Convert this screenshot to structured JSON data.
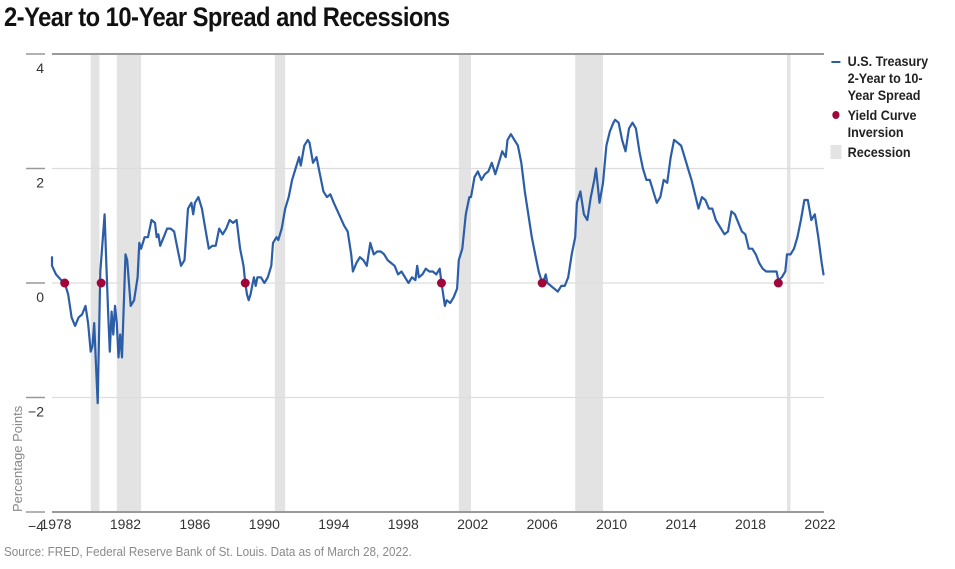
{
  "title": "2-Year to 10-Year Spread and Recessions",
  "source": "Source: FRED, Federal Reserve Bank of St. Louis. Data as of March 28, 2022.",
  "legend": {
    "series": "U.S. Treasury 2-Year to 10-Year Spread",
    "inversion": "Yield Curve Inversion",
    "recession": "Recession"
  },
  "colors": {
    "series": "#2b5ea7",
    "inversion": "#a0063a",
    "recession": "#e3e3e3",
    "grid": "#dddddd",
    "axis": "#999999"
  },
  "chart_data": {
    "type": "line",
    "title": "2-Year to 10-Year Spread and Recessions",
    "xlabel": "",
    "ylabel": "Percentage Points",
    "xlim": [
      1978,
      2022
    ],
    "ylim": [
      -4,
      4
    ],
    "x_ticks": [
      "1978",
      "1982",
      "1986",
      "1990",
      "1994",
      "1998",
      "2002",
      "2006",
      "2010",
      "2014",
      "2018",
      "2022"
    ],
    "y_ticks": [
      "4",
      "2",
      "0",
      "−2",
      "−4"
    ],
    "y_tick_values": [
      4,
      2,
      0,
      -2,
      -4
    ],
    "grid": true,
    "legend_position": "right",
    "recessions": [
      [
        1980.0,
        1980.5
      ],
      [
        1981.5,
        1982.9
      ],
      [
        1990.6,
        1991.2
      ],
      [
        2001.2,
        2001.9
      ],
      [
        2007.9,
        2009.5
      ],
      [
        2020.1,
        2020.3
      ]
    ],
    "inversions": [
      1978.5,
      1980.6,
      1988.9,
      2000.2,
      2006.0,
      2019.6
    ],
    "series": [
      {
        "name": "U.S. Treasury 2-Year to 10-Year Spread",
        "points": [
          [
            1976.5,
            0.45
          ],
          [
            1977.0,
            0.45
          ],
          [
            1977.3,
            0.4
          ],
          [
            1977.6,
            0.3
          ],
          [
            1978.0,
            0.15
          ],
          [
            1978.3,
            0.05
          ],
          [
            1978.5,
            0.0
          ],
          [
            1978.7,
            -0.2
          ],
          [
            1978.9,
            -0.6
          ],
          [
            1979.1,
            -0.75
          ],
          [
            1979.3,
            -0.6
          ],
          [
            1979.5,
            -0.55
          ],
          [
            1979.7,
            -0.4
          ],
          [
            1979.85,
            -0.7
          ],
          [
            1980.0,
            -1.2
          ],
          [
            1980.1,
            -1.1
          ],
          [
            1980.2,
            -0.7
          ],
          [
            1980.3,
            -1.4
          ],
          [
            1980.4,
            -2.1
          ],
          [
            1980.55,
            0.2
          ],
          [
            1980.7,
            0.8
          ],
          [
            1980.8,
            1.2
          ],
          [
            1980.9,
            0.3
          ],
          [
            1981.0,
            -0.5
          ],
          [
            1981.1,
            -1.2
          ],
          [
            1981.2,
            -0.5
          ],
          [
            1981.3,
            -0.9
          ],
          [
            1981.4,
            -0.4
          ],
          [
            1981.5,
            -0.7
          ],
          [
            1981.6,
            -1.3
          ],
          [
            1981.7,
            -0.9
          ],
          [
            1981.8,
            -1.3
          ],
          [
            1982.0,
            0.5
          ],
          [
            1982.1,
            0.4
          ],
          [
            1982.3,
            -0.4
          ],
          [
            1982.5,
            -0.3
          ],
          [
            1982.7,
            0.1
          ],
          [
            1982.8,
            0.7
          ],
          [
            1982.9,
            0.6
          ],
          [
            1983.1,
            0.8
          ],
          [
            1983.3,
            0.8
          ],
          [
            1983.5,
            1.1
          ],
          [
            1983.7,
            1.05
          ],
          [
            1983.8,
            0.8
          ],
          [
            1983.9,
            0.85
          ],
          [
            1984.0,
            0.65
          ],
          [
            1984.2,
            0.8
          ],
          [
            1984.4,
            0.95
          ],
          [
            1984.6,
            0.95
          ],
          [
            1984.8,
            0.9
          ],
          [
            1985.0,
            0.6
          ],
          [
            1985.2,
            0.3
          ],
          [
            1985.4,
            0.4
          ],
          [
            1985.6,
            1.3
          ],
          [
            1985.8,
            1.4
          ],
          [
            1985.9,
            1.2
          ],
          [
            1986.0,
            1.4
          ],
          [
            1986.2,
            1.5
          ],
          [
            1986.4,
            1.3
          ],
          [
            1986.6,
            0.95
          ],
          [
            1986.8,
            0.6
          ],
          [
            1987.0,
            0.65
          ],
          [
            1987.2,
            0.65
          ],
          [
            1987.4,
            0.95
          ],
          [
            1987.6,
            0.85
          ],
          [
            1987.8,
            0.95
          ],
          [
            1988.0,
            1.1
          ],
          [
            1988.2,
            1.05
          ],
          [
            1988.4,
            1.1
          ],
          [
            1988.6,
            0.6
          ],
          [
            1988.8,
            0.3
          ],
          [
            1988.9,
            0.0
          ],
          [
            1989.0,
            -0.2
          ],
          [
            1989.1,
            -0.3
          ],
          [
            1989.2,
            -0.2
          ],
          [
            1989.4,
            0.1
          ],
          [
            1989.5,
            -0.05
          ],
          [
            1989.6,
            0.1
          ],
          [
            1989.8,
            0.1
          ],
          [
            1990.0,
            0.0
          ],
          [
            1990.2,
            0.1
          ],
          [
            1990.4,
            0.3
          ],
          [
            1990.5,
            0.7
          ],
          [
            1990.7,
            0.8
          ],
          [
            1990.8,
            0.75
          ],
          [
            1991.0,
            0.95
          ],
          [
            1991.2,
            1.3
          ],
          [
            1991.4,
            1.5
          ],
          [
            1991.6,
            1.8
          ],
          [
            1991.8,
            2.0
          ],
          [
            1992.0,
            2.2
          ],
          [
            1992.1,
            2.05
          ],
          [
            1992.3,
            2.4
          ],
          [
            1992.5,
            2.5
          ],
          [
            1992.6,
            2.45
          ],
          [
            1992.8,
            2.1
          ],
          [
            1993.0,
            2.2
          ],
          [
            1993.2,
            1.9
          ],
          [
            1993.4,
            1.6
          ],
          [
            1993.6,
            1.5
          ],
          [
            1993.8,
            1.55
          ],
          [
            1994.0,
            1.4
          ],
          [
            1994.3,
            1.2
          ],
          [
            1994.6,
            1.0
          ],
          [
            1994.8,
            0.9
          ],
          [
            1995.0,
            0.5
          ],
          [
            1995.1,
            0.2
          ],
          [
            1995.3,
            0.35
          ],
          [
            1995.5,
            0.45
          ],
          [
            1995.7,
            0.4
          ],
          [
            1995.9,
            0.3
          ],
          [
            1996.1,
            0.7
          ],
          [
            1996.3,
            0.5
          ],
          [
            1996.5,
            0.55
          ],
          [
            1996.7,
            0.55
          ],
          [
            1996.9,
            0.5
          ],
          [
            1997.1,
            0.4
          ],
          [
            1997.3,
            0.35
          ],
          [
            1997.5,
            0.3
          ],
          [
            1997.7,
            0.15
          ],
          [
            1997.9,
            0.2
          ],
          [
            1998.1,
            0.1
          ],
          [
            1998.3,
            0.0
          ],
          [
            1998.5,
            0.1
          ],
          [
            1998.7,
            0.05
          ],
          [
            1998.8,
            0.3
          ],
          [
            1998.9,
            0.1
          ],
          [
            1999.1,
            0.15
          ],
          [
            1999.3,
            0.25
          ],
          [
            1999.5,
            0.2
          ],
          [
            1999.7,
            0.2
          ],
          [
            1999.9,
            0.15
          ],
          [
            2000.1,
            0.25
          ],
          [
            2000.2,
            0.0
          ],
          [
            2000.4,
            -0.4
          ],
          [
            2000.5,
            -0.3
          ],
          [
            2000.7,
            -0.35
          ],
          [
            2000.9,
            -0.25
          ],
          [
            2001.1,
            -0.1
          ],
          [
            2001.2,
            0.4
          ],
          [
            2001.4,
            0.6
          ],
          [
            2001.6,
            1.2
          ],
          [
            2001.8,
            1.5
          ],
          [
            2001.9,
            1.5
          ],
          [
            2002.1,
            1.85
          ],
          [
            2002.3,
            1.95
          ],
          [
            2002.5,
            1.8
          ],
          [
            2002.7,
            1.9
          ],
          [
            2002.9,
            1.95
          ],
          [
            2003.1,
            2.1
          ],
          [
            2003.3,
            1.9
          ],
          [
            2003.5,
            2.1
          ],
          [
            2003.7,
            2.3
          ],
          [
            2003.9,
            2.2
          ],
          [
            2004.0,
            2.5
          ],
          [
            2004.2,
            2.6
          ],
          [
            2004.4,
            2.5
          ],
          [
            2004.6,
            2.4
          ],
          [
            2004.8,
            2.1
          ],
          [
            2005.0,
            1.6
          ],
          [
            2005.2,
            1.2
          ],
          [
            2005.4,
            0.8
          ],
          [
            2005.6,
            0.5
          ],
          [
            2005.8,
            0.2
          ],
          [
            2006.0,
            0.0
          ],
          [
            2006.1,
            0.05
          ],
          [
            2006.2,
            0.15
          ],
          [
            2006.3,
            0.0
          ],
          [
            2006.5,
            -0.05
          ],
          [
            2006.7,
            -0.1
          ],
          [
            2006.9,
            -0.15
          ],
          [
            2007.1,
            -0.05
          ],
          [
            2007.3,
            -0.05
          ],
          [
            2007.5,
            0.1
          ],
          [
            2007.7,
            0.5
          ],
          [
            2007.9,
            0.8
          ],
          [
            2008.0,
            1.4
          ],
          [
            2008.2,
            1.6
          ],
          [
            2008.4,
            1.2
          ],
          [
            2008.6,
            1.1
          ],
          [
            2008.8,
            1.5
          ],
          [
            2009.0,
            1.8
          ],
          [
            2009.1,
            2.0
          ],
          [
            2009.3,
            1.4
          ],
          [
            2009.5,
            1.75
          ],
          [
            2009.7,
            2.4
          ],
          [
            2009.9,
            2.65
          ],
          [
            2010.1,
            2.8
          ],
          [
            2010.2,
            2.85
          ],
          [
            2010.4,
            2.8
          ],
          [
            2010.6,
            2.5
          ],
          [
            2010.8,
            2.3
          ],
          [
            2011.0,
            2.7
          ],
          [
            2011.2,
            2.8
          ],
          [
            2011.4,
            2.7
          ],
          [
            2011.6,
            2.3
          ],
          [
            2011.8,
            2.0
          ],
          [
            2012.0,
            1.8
          ],
          [
            2012.2,
            1.8
          ],
          [
            2012.4,
            1.6
          ],
          [
            2012.6,
            1.4
          ],
          [
            2012.8,
            1.5
          ],
          [
            2013.0,
            1.8
          ],
          [
            2013.2,
            1.75
          ],
          [
            2013.4,
            2.2
          ],
          [
            2013.6,
            2.5
          ],
          [
            2013.8,
            2.45
          ],
          [
            2014.0,
            2.4
          ],
          [
            2014.2,
            2.2
          ],
          [
            2014.4,
            2.0
          ],
          [
            2014.6,
            1.8
          ],
          [
            2014.8,
            1.55
          ],
          [
            2015.0,
            1.3
          ],
          [
            2015.2,
            1.5
          ],
          [
            2015.4,
            1.45
          ],
          [
            2015.6,
            1.3
          ],
          [
            2015.8,
            1.3
          ],
          [
            2016.0,
            1.1
          ],
          [
            2016.3,
            0.95
          ],
          [
            2016.5,
            0.85
          ],
          [
            2016.7,
            0.9
          ],
          [
            2016.9,
            1.25
          ],
          [
            2017.1,
            1.2
          ],
          [
            2017.3,
            1.05
          ],
          [
            2017.5,
            0.9
          ],
          [
            2017.7,
            0.85
          ],
          [
            2017.9,
            0.6
          ],
          [
            2018.1,
            0.6
          ],
          [
            2018.3,
            0.5
          ],
          [
            2018.5,
            0.35
          ],
          [
            2018.7,
            0.25
          ],
          [
            2018.9,
            0.2
          ],
          [
            2019.1,
            0.2
          ],
          [
            2019.3,
            0.2
          ],
          [
            2019.5,
            0.2
          ],
          [
            2019.6,
            0.05
          ],
          [
            2019.8,
            0.1
          ],
          [
            2019.9,
            0.15
          ],
          [
            2020.0,
            0.2
          ],
          [
            2020.1,
            0.5
          ],
          [
            2020.3,
            0.5
          ],
          [
            2020.5,
            0.6
          ],
          [
            2020.7,
            0.8
          ],
          [
            2020.9,
            1.1
          ],
          [
            2021.1,
            1.45
          ],
          [
            2021.3,
            1.45
          ],
          [
            2021.5,
            1.1
          ],
          [
            2021.7,
            1.2
          ],
          [
            2021.9,
            0.8
          ],
          [
            2022.1,
            0.35
          ],
          [
            2022.2,
            0.15
          ]
        ]
      }
    ]
  }
}
